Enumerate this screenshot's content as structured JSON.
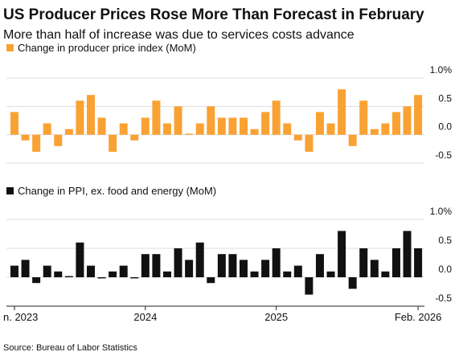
{
  "title": "US Producer Prices Rose More Than Forecast in February",
  "subtitle": "More than half of increase was due to services costs advance",
  "source": "Source: Bureau of Labor Statistics",
  "chart_data": [
    {
      "type": "bar",
      "series": [
        {
          "name": "Change in producer price index (MoM)",
          "color": "#f9a233",
          "values": [
            0.4,
            -0.1,
            -0.3,
            0.2,
            -0.2,
            0.1,
            0.6,
            0.7,
            0.3,
            -0.3,
            0.2,
            -0.1,
            0.3,
            0.6,
            0.2,
            0.5,
            0.02,
            0.2,
            0.5,
            0.3,
            0.3,
            0.3,
            0.1,
            0.4,
            0.6,
            0.2,
            -0.1,
            -0.3,
            0.4,
            0.2,
            0.8,
            -0.2,
            0.6,
            0.1,
            0.2,
            0.4,
            0.5,
            0.7
          ]
        }
      ],
      "ylim": [
        -0.5,
        1.0
      ],
      "yticks": [
        -0.5,
        {
          "value": 0,
          "label": "0.0"
        },
        0.5,
        {
          "value": 1.0,
          "label": "1.0%"
        }
      ],
      "grid": true
    },
    {
      "type": "bar",
      "categories": [
        "n. 2023",
        null,
        null,
        null,
        null,
        null,
        null,
        null,
        null,
        null,
        null,
        null,
        "2024",
        null,
        null,
        null,
        null,
        null,
        null,
        null,
        null,
        null,
        null,
        null,
        "2025",
        null,
        null,
        null,
        null,
        null,
        null,
        null,
        null,
        null,
        null,
        null,
        null,
        "Feb. 2026"
      ],
      "series": [
        {
          "name": "Change in PPI, ex. food and energy (MoM)",
          "color": "#111111",
          "values": [
            0.2,
            0.3,
            -0.1,
            0.2,
            0.1,
            0.02,
            0.6,
            0.2,
            -0.02,
            0.1,
            0.2,
            -0.02,
            0.4,
            0.4,
            0.1,
            0.5,
            0.3,
            0.6,
            -0.1,
            0.4,
            0.4,
            0.3,
            0.1,
            0.3,
            0.5,
            0.1,
            0.2,
            -0.3,
            0.4,
            0.1,
            0.8,
            -0.2,
            0.5,
            0.3,
            0.1,
            0.5,
            0.8,
            0.5
          ]
        }
      ],
      "ylim": [
        -0.5,
        1.0
      ],
      "yticks": [
        -0.5,
        {
          "value": 0,
          "label": "0.0"
        },
        0.5,
        {
          "value": 1.0,
          "label": "1.0%"
        }
      ],
      "grid": true
    }
  ]
}
